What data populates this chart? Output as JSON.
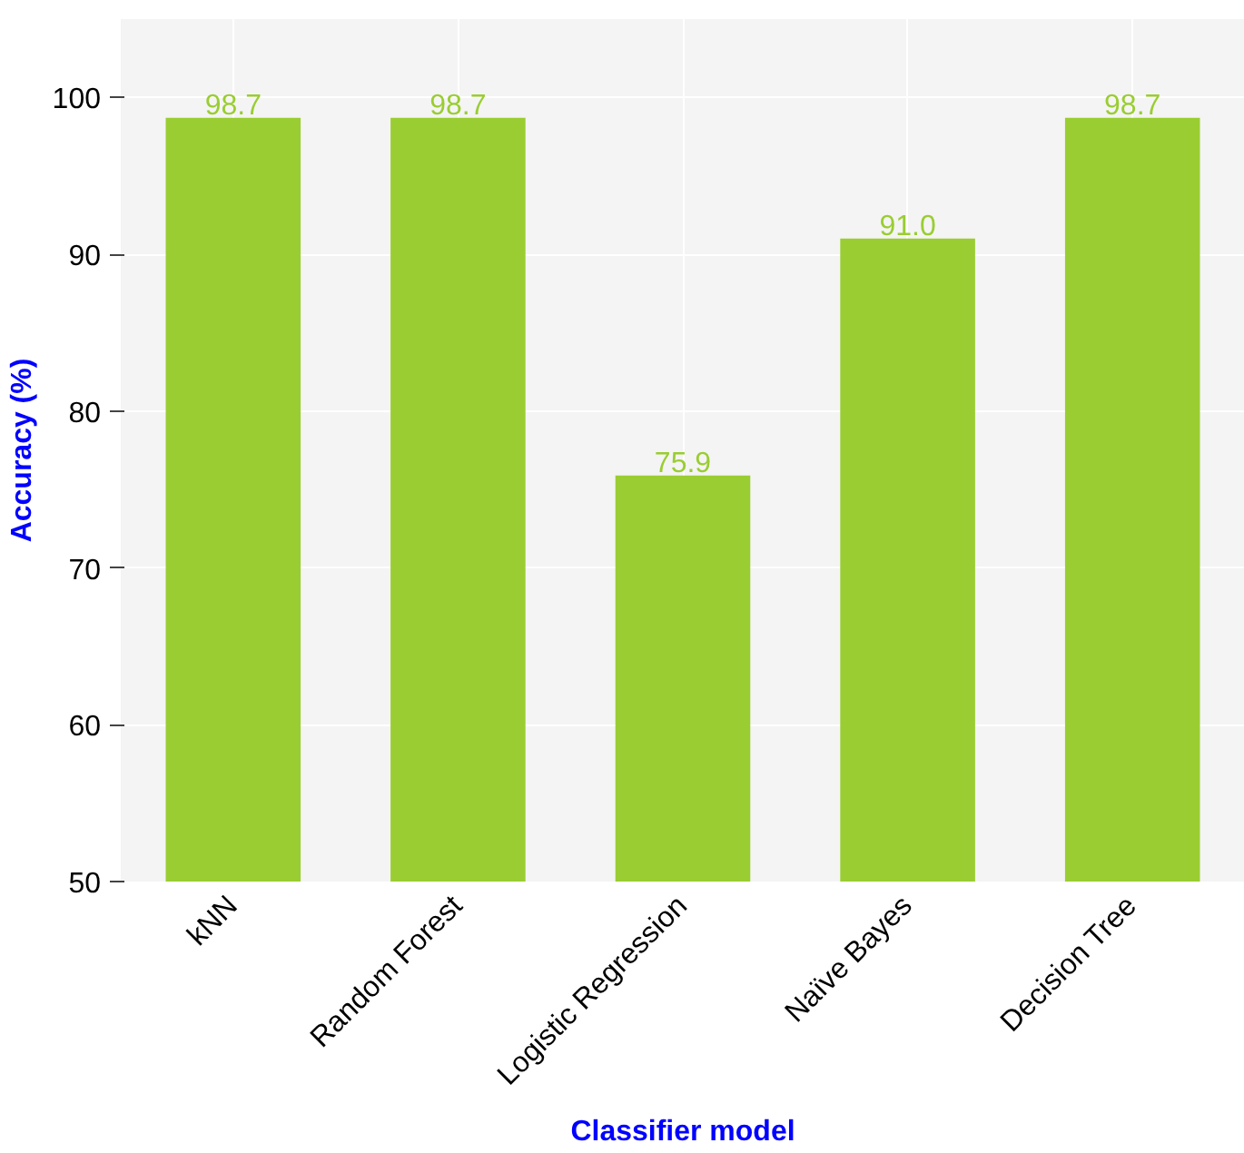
{
  "chart_data": {
    "type": "bar",
    "xlabel": "Classifier model",
    "ylabel": "Accuracy (%)",
    "categories": [
      "kNN",
      "Random Forest",
      "Logistic Regression",
      "Naïve Bayes",
      "Decision Tree"
    ],
    "values": [
      98.7,
      98.7,
      75.9,
      91.0,
      98.7
    ],
    "color": "#9acd32",
    "ylim": [
      50,
      105
    ],
    "yticks": [
      50,
      60,
      70,
      80,
      90,
      100
    ],
    "grid": true,
    "value_labels": [
      "98.7",
      "98.7",
      "75.9",
      "91.0",
      "98.7"
    ]
  }
}
